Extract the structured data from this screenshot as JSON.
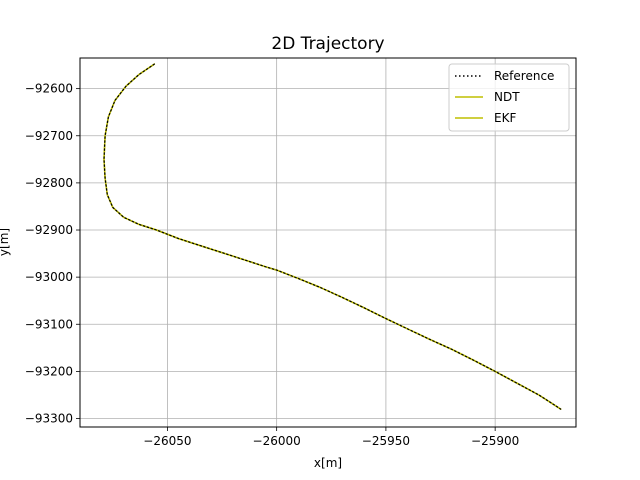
{
  "chart_data": {
    "type": "line",
    "title": "2D Trajectory",
    "xlabel": "x[m]",
    "ylabel": "y[m]",
    "xlim": [
      -26090,
      -25863
    ],
    "ylim": [
      -93318,
      -92535
    ],
    "xticks": [
      -26050,
      -26000,
      -25950,
      -25900
    ],
    "yticks": [
      -92600,
      -92700,
      -92800,
      -92900,
      -93000,
      -93100,
      -93200,
      -93300
    ],
    "grid": true,
    "legend": "top-right",
    "series": [
      {
        "name": "Reference",
        "color": "#000000",
        "style": "dotted",
        "x": [
          -26056,
          -26063,
          -26069,
          -26074,
          -26077,
          -26078.5,
          -26079,
          -26078.5,
          -26077.5,
          -26075,
          -26070,
          -26063,
          -26055,
          -26045,
          -26035,
          -26025,
          -26015,
          -26005,
          -26000,
          -25990,
          -25980,
          -25970,
          -25960,
          -25950,
          -25940,
          -25930,
          -25920,
          -25910,
          -25900,
          -25890,
          -25880,
          -25875,
          -25870
        ],
        "y": [
          -92548,
          -92570,
          -92595,
          -92625,
          -92660,
          -92700,
          -92750,
          -92790,
          -92825,
          -92852,
          -92873,
          -92888,
          -92900,
          -92918,
          -92933,
          -92948,
          -92963,
          -92978,
          -92985,
          -93003,
          -93022,
          -93043,
          -93065,
          -93088,
          -93110,
          -93132,
          -93153,
          -93176,
          -93200,
          -93225,
          -93250,
          -93265,
          -93280
        ]
      },
      {
        "name": "NDT",
        "color": "#bfbf00",
        "style": "solid",
        "x": [
          -26056,
          -26063,
          -26069,
          -26074,
          -26077,
          -26078.5,
          -26079,
          -26078.5,
          -26077.5,
          -26075,
          -26070,
          -26063,
          -26055,
          -26045,
          -26035,
          -26025,
          -26015,
          -26005,
          -26000,
          -25990,
          -25980,
          -25970,
          -25960,
          -25950,
          -25940,
          -25930,
          -25920,
          -25910,
          -25900,
          -25890,
          -25880,
          -25875,
          -25870
        ],
        "y": [
          -92548,
          -92570,
          -92595,
          -92625,
          -92660,
          -92700,
          -92750,
          -92790,
          -92825,
          -92852,
          -92873,
          -92888,
          -92900,
          -92918,
          -92933,
          -92948,
          -92963,
          -92978,
          -92985,
          -93003,
          -93022,
          -93043,
          -93065,
          -93088,
          -93110,
          -93132,
          -93153,
          -93176,
          -93200,
          -93225,
          -93250,
          -93265,
          -93280
        ]
      },
      {
        "name": "EKF",
        "color": "#bfbf00",
        "style": "solid",
        "x": [
          -26056,
          -26063,
          -26069,
          -26074,
          -26077,
          -26078.5,
          -26079,
          -26078.5,
          -26077.5,
          -26075,
          -26070,
          -26063,
          -26055,
          -26045,
          -26035,
          -26025,
          -26015,
          -26005,
          -26000,
          -25990,
          -25980,
          -25970,
          -25960,
          -25950,
          -25940,
          -25930,
          -25920,
          -25910,
          -25900,
          -25890,
          -25880,
          -25875,
          -25870
        ],
        "y": [
          -92548,
          -92570,
          -92595,
          -92625,
          -92660,
          -92700,
          -92750,
          -92790,
          -92825,
          -92852,
          -92873,
          -92888,
          -92900,
          -92918,
          -92933,
          -92948,
          -92963,
          -92978,
          -92985,
          -93003,
          -93022,
          -93043,
          -93065,
          -93088,
          -93110,
          -93132,
          -93153,
          -93176,
          -93200,
          -93225,
          -93250,
          -93265,
          -93280
        ]
      }
    ]
  }
}
